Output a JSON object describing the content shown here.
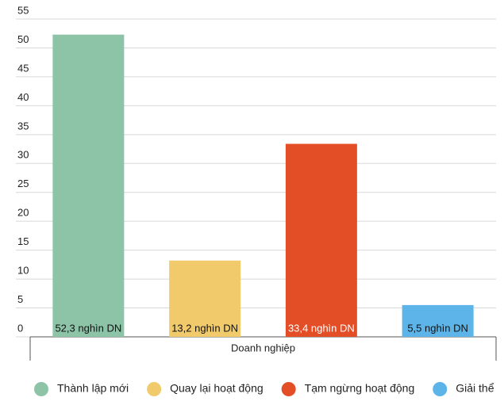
{
  "chart_data": {
    "type": "bar",
    "categories": [
      "Doanh nghiệp"
    ],
    "series": [
      {
        "name": "Thành lập mới",
        "color": "#8dc4a8",
        "label_color": "#111111",
        "values": [
          52.3
        ],
        "value_labels": [
          "52,3 nghìn DN"
        ]
      },
      {
        "name": "Quay lại hoạt động",
        "color": "#f1ca6b",
        "label_color": "#111111",
        "values": [
          13.2
        ],
        "value_labels": [
          "13,2 nghìn DN"
        ]
      },
      {
        "name": "Tạm ngừng hoạt động",
        "color": "#e44e27",
        "label_color": "#ffffff",
        "values": [
          33.4
        ],
        "value_labels": [
          "33,4 nghìn DN"
        ]
      },
      {
        "name": "Giải thể",
        "color": "#5db4e9",
        "label_color": "#111111",
        "values": [
          5.5
        ],
        "value_labels": [
          "5,5 nghìn DN"
        ]
      }
    ],
    "ylim": [
      0,
      55
    ],
    "yticks": [
      0,
      5,
      10,
      15,
      20,
      25,
      30,
      35,
      40,
      45,
      50,
      55
    ],
    "grid": true
  }
}
